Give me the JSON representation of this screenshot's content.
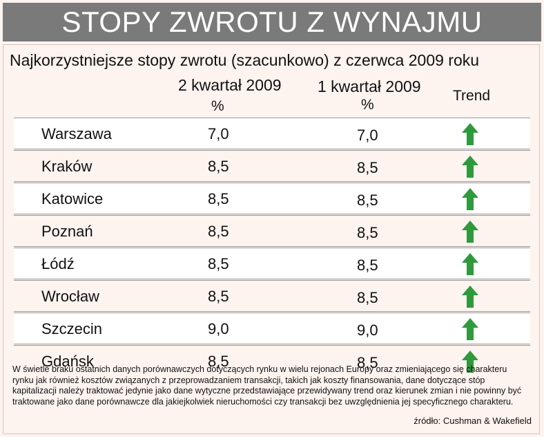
{
  "title": "STOPY ZWROTU Z WYNAJMU",
  "subtitle": "Najkorzystniejsze stopy zwrotu (szacunkowo) z czerwca 2009 roku",
  "columns": {
    "q2": "2 kwartał 2009",
    "q2_unit": "%",
    "q1": "1 kwartał 2009",
    "q1_unit": "%",
    "trend": "Trend"
  },
  "rows": [
    {
      "city": "Warszawa",
      "q2": "7,0",
      "q1": "7,0",
      "trend_icon": "arrow-up-icon"
    },
    {
      "city": "Kraków",
      "q2": "8,5",
      "q1": "8,5",
      "trend_icon": "arrow-up-icon"
    },
    {
      "city": "Katowice",
      "q2": "8,5",
      "q1": "8,5",
      "trend_icon": "arrow-up-icon"
    },
    {
      "city": "Poznań",
      "q2": "8,5",
      "q1": "8,5",
      "trend_icon": "arrow-up-icon"
    },
    {
      "city": "Łódź",
      "q2": "8,5",
      "q1": "8,5",
      "trend_icon": "arrow-up-icon"
    },
    {
      "city": "Wrocław",
      "q2": "8,5",
      "q1": "8,5",
      "trend_icon": "arrow-up-icon"
    },
    {
      "city": "Szczecin",
      "q2": "9,0",
      "q1": "9,0",
      "trend_icon": "arrow-up-icon"
    },
    {
      "city": "Gdańsk",
      "q2": "8,5",
      "q1": "8,5",
      "trend_icon": "arrow-up-icon"
    }
  ],
  "note": "W świetle braku ostatnich danych porównawczych dotyczących rynku w wielu rejonach Europy oraz zmieniającego się charakteru rynku jak również kosztów związanych z przeprowadzaniem transakcji, takich jak koszty finansowania, dane dotyczące stóp kapitalizacji należy traktować jedynie jako dane wytyczne przedstawiające przewidywany trend oraz kierunek zmian i nie powinny być traktowane jako dane porównawcze dla jakiejkolwiek nieruchomości czy transakcji bez uwzględnienia jej specyficznego charakteru.",
  "source": "źródło: Cushman & Wakefield",
  "colors": {
    "title_bg": "#7a7a7a",
    "page_bg": "#fdf3ef",
    "arrow": "#2e9a3c"
  }
}
